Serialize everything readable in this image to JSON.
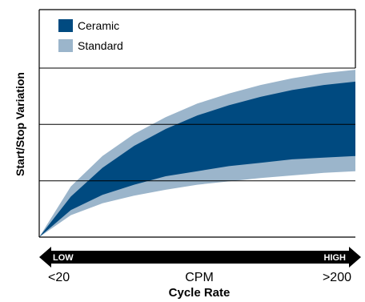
{
  "chart_data": {
    "type": "area",
    "title": "",
    "ylabel": "Start/Stop Variation",
    "xlabel_primary": "CPM",
    "xlabel_secondary": "Cycle Rate",
    "x_ticks": {
      "low": "<20",
      "high": ">200"
    },
    "arrow_labels": {
      "low": "LOW",
      "high": "HIGH"
    },
    "x_range": [
      0,
      1
    ],
    "y_range": [
      0,
      1
    ],
    "grid": true,
    "gridline_levels": [
      0.333,
      0.667,
      1.0
    ],
    "legend": {
      "position": "top-left",
      "entries": [
        {
          "name": "Ceramic",
          "color": "#004a80"
        },
        {
          "name": "Standard",
          "color": "#9bb5cb"
        }
      ]
    },
    "series": [
      {
        "name": "Standard",
        "color": "#9bb5cb",
        "x": [
          0.0,
          0.1,
          0.2,
          0.3,
          0.4,
          0.5,
          0.6,
          0.7,
          0.8,
          0.9,
          1.0
        ],
        "upper": [
          0.0,
          0.3,
          0.48,
          0.61,
          0.71,
          0.79,
          0.85,
          0.9,
          0.94,
          0.97,
          0.99
        ],
        "lower": [
          0.0,
          0.13,
          0.2,
          0.245,
          0.28,
          0.31,
          0.33,
          0.35,
          0.365,
          0.38,
          0.39
        ]
      },
      {
        "name": "Ceramic",
        "color": "#004a80",
        "x": [
          0.0,
          0.1,
          0.2,
          0.3,
          0.4,
          0.5,
          0.6,
          0.7,
          0.8,
          0.9,
          1.0
        ],
        "upper": [
          0.0,
          0.24,
          0.41,
          0.54,
          0.64,
          0.72,
          0.78,
          0.83,
          0.87,
          0.9,
          0.92
        ],
        "lower": [
          0.0,
          0.16,
          0.25,
          0.31,
          0.36,
          0.39,
          0.42,
          0.44,
          0.46,
          0.47,
          0.48
        ]
      }
    ]
  }
}
